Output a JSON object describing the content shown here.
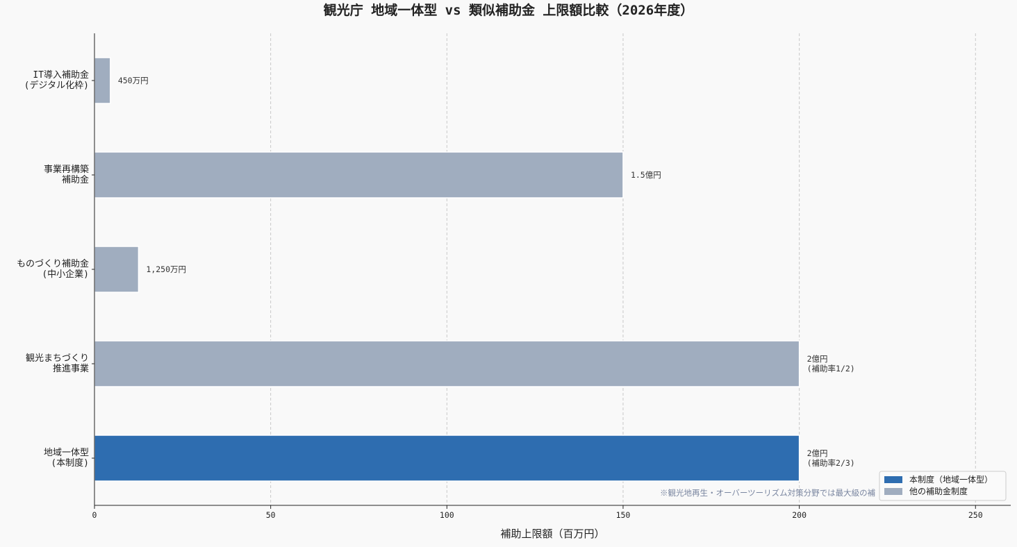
{
  "chart_data": {
    "type": "barh",
    "title": "観光庁 地域一体型 vs 類似補助金 上限額比較（2026年度）",
    "categories": [
      "IT導入補助金\n(デジタル化枠)",
      "事業再構築\n補助金",
      "ものづくり補助金\n(中小企業)",
      "観光まちづくり\n推進事業",
      "地域一体型\n(本制度)"
    ],
    "values": [
      4.5,
      150,
      12.5,
      200,
      200
    ],
    "value_labels": [
      "450万円",
      "1.5億円",
      "1,250万円",
      "2億円\n(補助率1/2)",
      "2億円\n(補助率2/3)"
    ],
    "colors": [
      "#a0adbf",
      "#a0adbf",
      "#a0adbf",
      "#a0adbf",
      "#2e6db0"
    ],
    "legend": [
      {
        "name": "本制度（地域一体型）",
        "color": "#2e6db0"
      },
      {
        "name": "他の補助金制度",
        "color": "#a0adbf"
      }
    ],
    "legend_position": "lower right",
    "x_label": "補助上限額（百万円）",
    "xlim": [
      0,
      260
    ],
    "xticks": [
      0,
      50,
      100,
      150,
      200,
      250
    ],
    "grid": true,
    "note": "※観光地再生・オーバーツーリズム対策分野では最大級の補"
  }
}
